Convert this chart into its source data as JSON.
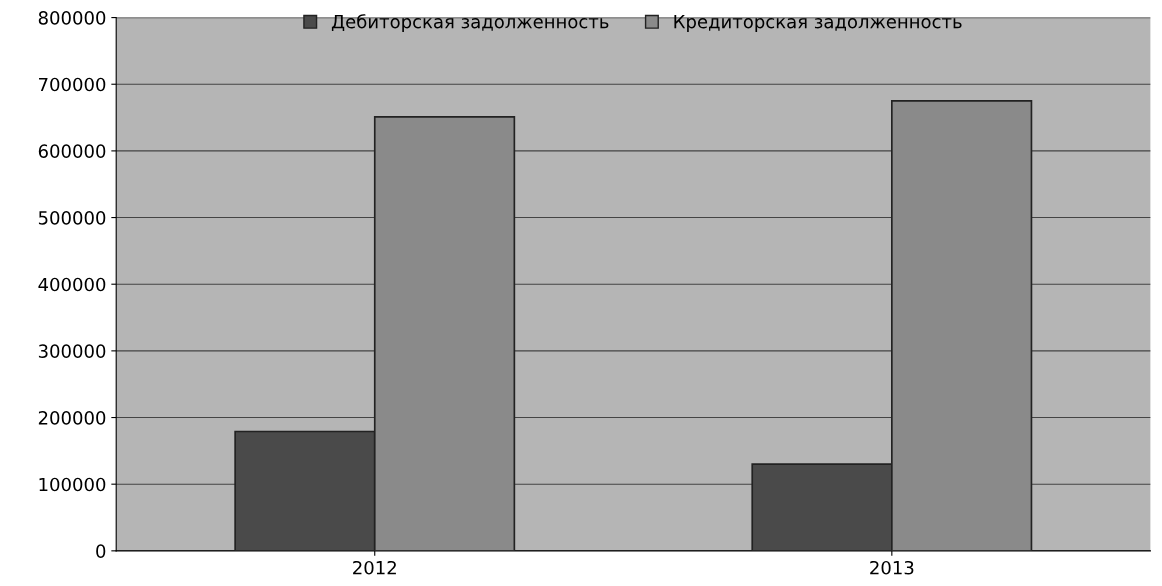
{
  "chart_data": {
    "type": "bar",
    "categories": [
      "2012",
      "2013"
    ],
    "series": [
      {
        "name": "Дебиторская задолженность",
        "color": "#4a4a4a",
        "values": [
          179000,
          130000
        ]
      },
      {
        "name": "Кредиторская задолженность",
        "color": "#8a8a8a",
        "values": [
          651000,
          675000
        ]
      }
    ],
    "ylim": [
      0,
      800000
    ],
    "yticks": [
      0,
      100000,
      200000,
      300000,
      400000,
      500000,
      600000,
      700000,
      800000
    ],
    "grid": "y",
    "legend": "top"
  }
}
